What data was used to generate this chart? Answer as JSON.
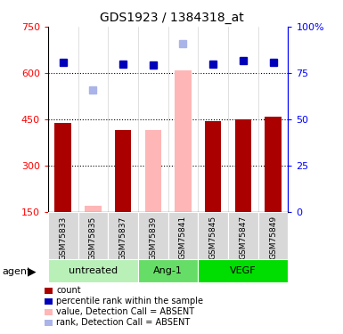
{
  "title": "GDS1923 / 1384318_at",
  "samples": [
    "GSM75833",
    "GSM75835",
    "GSM75837",
    "GSM75839",
    "GSM75841",
    "GSM75845",
    "GSM75847",
    "GSM75849"
  ],
  "bar_values": [
    440,
    170,
    415,
    415,
    610,
    445,
    450,
    460
  ],
  "bar_absent": [
    false,
    true,
    false,
    true,
    true,
    false,
    false,
    false
  ],
  "rank_values": [
    635,
    545,
    630,
    625,
    695,
    630,
    640,
    635
  ],
  "rank_absent": [
    false,
    true,
    false,
    false,
    true,
    false,
    false,
    false
  ],
  "groups": [
    {
      "label": "untreated",
      "start": 0,
      "end": 3,
      "color": "#b8f0b8"
    },
    {
      "label": "Ang-1",
      "start": 3,
      "end": 5,
      "color": "#66dd66"
    },
    {
      "label": "VEGF",
      "start": 5,
      "end": 8,
      "color": "#00dd00"
    }
  ],
  "ymin": 150,
  "ymax": 750,
  "yticks": [
    150,
    300,
    450,
    600,
    750
  ],
  "right_yticks": [
    0,
    25,
    50,
    75,
    100
  ],
  "right_yticklabels": [
    "0",
    "25",
    "50",
    "75",
    "100%"
  ],
  "bar_color_present": "#aa0000",
  "bar_color_absent": "#ffb6b6",
  "rank_color_present": "#0000bb",
  "rank_color_absent": "#aab4e8",
  "legend_items": [
    {
      "label": "count",
      "color": "#aa0000"
    },
    {
      "label": "percentile rank within the sample",
      "color": "#0000bb"
    },
    {
      "label": "value, Detection Call = ABSENT",
      "color": "#ffb6b6"
    },
    {
      "label": "rank, Detection Call = ABSENT",
      "color": "#aab4e8"
    }
  ]
}
